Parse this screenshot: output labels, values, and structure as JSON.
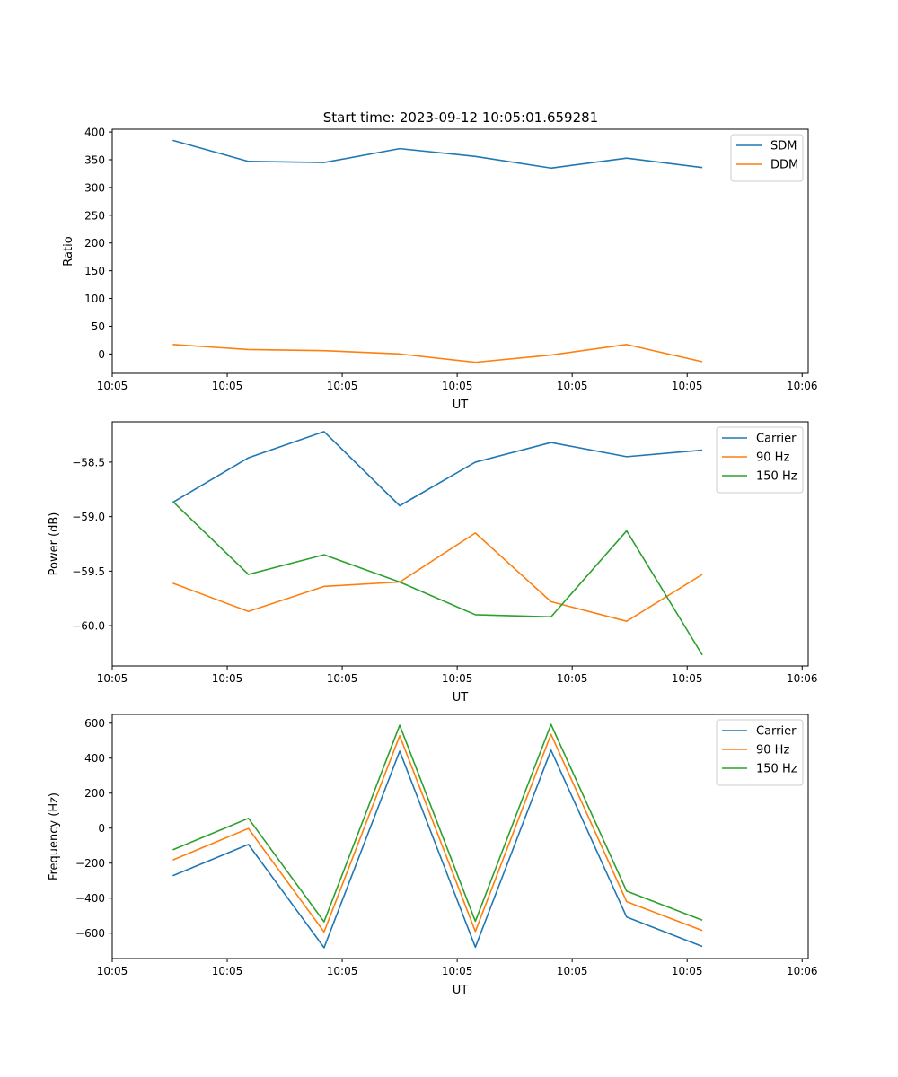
{
  "figure_title": "Start time: 2023-09-12 10:05:01.659281",
  "colors": {
    "blue": "#1f77b4",
    "orange": "#ff7f0e",
    "green": "#2ca02c"
  },
  "chart_data": [
    {
      "type": "line",
      "title": "Start time: 2023-09-12 10:05:01.659281",
      "xlabel": "UT",
      "ylabel": "Ratio",
      "x": [
        1,
        2,
        3,
        4,
        5,
        6,
        7,
        8
      ],
      "xlim": [
        0.2,
        9.4
      ],
      "xticks": [
        0.2,
        1.72,
        3.24,
        4.76,
        6.28,
        7.8,
        9.32
      ],
      "xtick_labels": [
        "10:05",
        "10:05",
        "10:05",
        "10:05",
        "10:05",
        "10:05",
        "10:06"
      ],
      "ylim": [
        -35,
        405
      ],
      "yticks": [
        0,
        50,
        100,
        150,
        200,
        250,
        300,
        350,
        400
      ],
      "ytick_labels": [
        "0",
        "50",
        "100",
        "150",
        "200",
        "250",
        "300",
        "350",
        "400"
      ],
      "legend_position": "upper-right",
      "series": [
        {
          "name": "SDM",
          "color": "#1f77b4",
          "values": [
            385,
            347,
            345,
            370,
            356,
            335,
            353,
            336
          ]
        },
        {
          "name": "DDM",
          "color": "#ff7f0e",
          "values": [
            17,
            8,
            6,
            0,
            -15,
            -2,
            17,
            -14
          ]
        }
      ]
    },
    {
      "type": "line",
      "title": "",
      "xlabel": "UT",
      "ylabel": "Power (dB)",
      "x": [
        1,
        2,
        3,
        4,
        5,
        6,
        7,
        8
      ],
      "xlim": [
        0.2,
        9.4
      ],
      "xticks": [
        0.2,
        1.72,
        3.24,
        4.76,
        6.28,
        7.8,
        9.32
      ],
      "xtick_labels": [
        "10:05",
        "10:05",
        "10:05",
        "10:05",
        "10:05",
        "10:05",
        "10:06"
      ],
      "ylim": [
        -60.37,
        -58.13
      ],
      "yticks": [
        -60.0,
        -59.5,
        -59.0,
        -58.5
      ],
      "ytick_labels": [
        "−60.0",
        "−59.5",
        "−59.0",
        "−58.5"
      ],
      "legend_position": "upper-right",
      "series": [
        {
          "name": "Carrier",
          "color": "#1f77b4",
          "values": [
            -58.87,
            -58.46,
            -58.22,
            -58.9,
            -58.5,
            -58.32,
            -58.45,
            -58.39
          ]
        },
        {
          "name": "90 Hz",
          "color": "#ff7f0e",
          "values": [
            -59.61,
            -59.87,
            -59.64,
            -59.6,
            -59.15,
            -59.78,
            -59.96,
            -59.53
          ]
        },
        {
          "name": "150 Hz",
          "color": "#2ca02c",
          "values": [
            -58.86,
            -59.53,
            -59.35,
            -59.6,
            -59.9,
            -59.92,
            -59.13,
            -60.27
          ]
        }
      ]
    },
    {
      "type": "line",
      "title": "",
      "xlabel": "UT",
      "ylabel": "Frequency (Hz)",
      "x": [
        1,
        2,
        3,
        4,
        5,
        6,
        7,
        8
      ],
      "xlim": [
        0.2,
        9.4
      ],
      "xticks": [
        0.2,
        1.72,
        3.24,
        4.76,
        6.28,
        7.8,
        9.32
      ],
      "xtick_labels": [
        "10:05",
        "10:05",
        "10:05",
        "10:05",
        "10:05",
        "10:05",
        "10:06"
      ],
      "ylim": [
        -745,
        650
      ],
      "yticks": [
        -600,
        -400,
        -200,
        0,
        200,
        400,
        600
      ],
      "ytick_labels": [
        "−600",
        "−400",
        "−200",
        "0",
        "200",
        "400",
        "600"
      ],
      "legend_position": "upper-right",
      "series": [
        {
          "name": "Carrier",
          "color": "#1f77b4",
          "values": [
            -272,
            -93,
            -683,
            440,
            -680,
            446,
            -508,
            -676
          ]
        },
        {
          "name": "90 Hz",
          "color": "#ff7f0e",
          "values": [
            -182,
            -2,
            -593,
            528,
            -590,
            536,
            -420,
            -585
          ]
        },
        {
          "name": "150 Hz",
          "color": "#2ca02c",
          "values": [
            -124,
            56,
            -535,
            588,
            -532,
            593,
            -360,
            -526
          ]
        }
      ]
    }
  ]
}
